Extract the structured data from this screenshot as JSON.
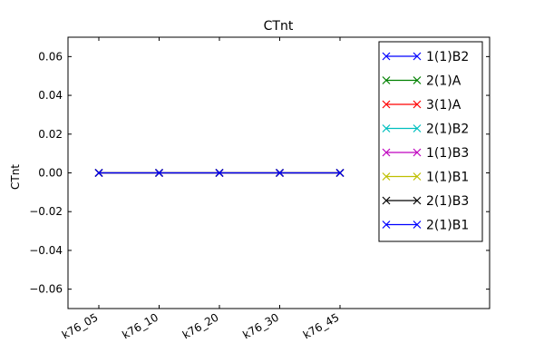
{
  "chart_data": {
    "type": "line",
    "title": "CTnt",
    "xlabel": "",
    "ylabel": "CTnt",
    "categories": [
      "k76_05",
      "k76_10",
      "k76_20",
      "k76_30",
      "k76_45"
    ],
    "ylim": [
      -0.07,
      0.07
    ],
    "yticks": [
      0.06,
      0.04,
      0.02,
      0.0,
      -0.02,
      -0.04,
      -0.06
    ],
    "ytick_labels": [
      "0.06",
      "0.04",
      "0.02",
      "0.00",
      "−0.02",
      "−0.04",
      "−0.06"
    ],
    "marker": "x",
    "grid": false,
    "legend_position": "top-right",
    "series": [
      {
        "name": "1(1)B2",
        "color": "#0000ff",
        "values": [
          0,
          0,
          0,
          0,
          0
        ]
      },
      {
        "name": "2(1)A",
        "color": "#008000",
        "values": [
          0,
          0,
          0,
          0,
          0
        ]
      },
      {
        "name": "3(1)A",
        "color": "#ff0000",
        "values": [
          0,
          0,
          0,
          0,
          0
        ]
      },
      {
        "name": "2(1)B2",
        "color": "#00bfbf",
        "values": [
          0,
          0,
          0,
          0,
          0
        ]
      },
      {
        "name": "1(1)B3",
        "color": "#bf00bf",
        "values": [
          0,
          0,
          0,
          0,
          0
        ]
      },
      {
        "name": "1(1)B1",
        "color": "#bfbf00",
        "values": [
          0,
          0,
          0,
          0,
          0
        ]
      },
      {
        "name": "2(1)B3",
        "color": "#000000",
        "values": [
          0,
          0,
          0,
          0,
          0
        ]
      },
      {
        "name": "2(1)B1",
        "color": "#0000ff",
        "values": [
          0,
          0,
          0,
          0,
          0
        ]
      }
    ]
  }
}
